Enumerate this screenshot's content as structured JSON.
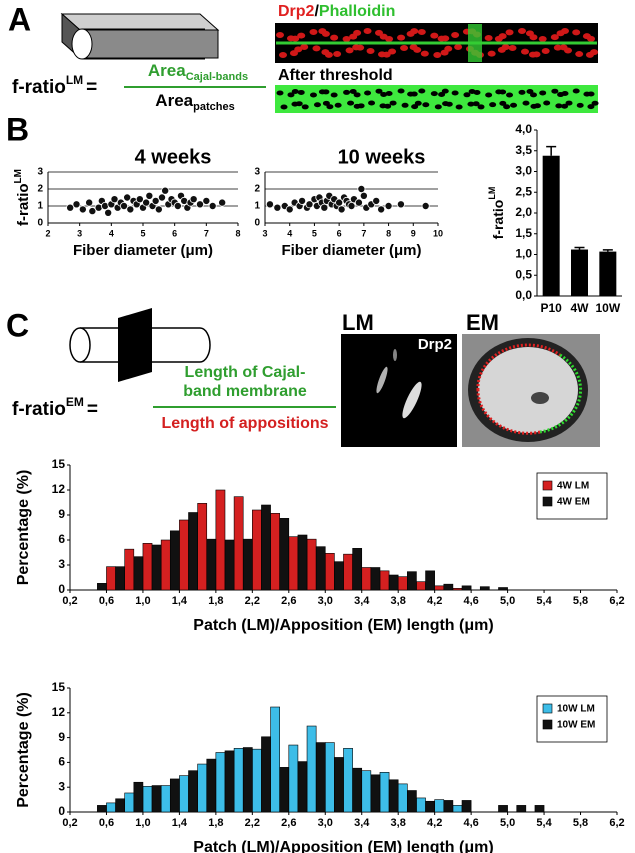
{
  "panel_a": {
    "label": "A",
    "formula": {
      "lhs": "f-ratio",
      "lhs_sup": "LM",
      "equals": "=",
      "num": "Area",
      "num_sub": "Cajal-bands",
      "den": "Area",
      "den_sub": "patches"
    },
    "image_title": {
      "part1": "Drp2",
      "sep": "/",
      "part2": "Phalloidin"
    },
    "image_caption": "After threshold"
  },
  "panel_b": {
    "label": "B"
  },
  "panel_c": {
    "label": "C",
    "formula": {
      "lhs": "f-ratio",
      "lhs_sup": "EM",
      "equals": "=",
      "num_lines": [
        "Length of Cajal-",
        "band membrane"
      ],
      "den": "Length of appositions"
    },
    "image_labels": {
      "lm": "LM",
      "em": "EM",
      "stain": "Drp2"
    }
  },
  "chart_data": [
    {
      "type": "scatter",
      "title": "4 weeks",
      "xlabel": "Fiber diameter (μm)",
      "ylabel": "f-ratio",
      "ylabel_sup": "LM",
      "color": "#111111",
      "grid": true,
      "x": [
        2.7,
        2.9,
        3.1,
        3.3,
        3.4,
        3.6,
        3.7,
        3.8,
        3.9,
        4.0,
        4.1,
        4.2,
        4.3,
        4.4,
        4.5,
        4.6,
        4.7,
        4.8,
        4.9,
        5.0,
        5.1,
        5.2,
        5.3,
        5.4,
        5.5,
        5.6,
        5.7,
        5.8,
        5.9,
        6.0,
        6.1,
        6.2,
        6.3,
        6.4,
        6.5,
        6.6,
        6.8,
        7.0,
        7.2,
        7.5
      ],
      "values": [
        0.9,
        1.1,
        0.8,
        1.2,
        0.7,
        0.9,
        1.3,
        1.0,
        0.6,
        1.1,
        1.4,
        0.9,
        1.2,
        1.0,
        1.5,
        0.8,
        1.3,
        1.1,
        1.4,
        0.9,
        1.2,
        1.6,
        1.0,
        1.3,
        0.8,
        1.5,
        1.9,
        1.1,
        1.4,
        1.2,
        1.0,
        1.6,
        1.3,
        0.9,
        1.2,
        1.4,
        1.1,
        1.3,
        1.0,
        1.2
      ],
      "xlim": [
        2,
        8
      ],
      "xticks": [
        2,
        3,
        4,
        5,
        6,
        7,
        8
      ],
      "ylim": [
        0,
        3
      ],
      "yticks": [
        0,
        1,
        2,
        3
      ]
    },
    {
      "type": "scatter",
      "title": "10 weeks",
      "xlabel": "Fiber diameter (μm)",
      "color": "#111111",
      "grid": true,
      "x": [
        3.2,
        3.5,
        3.8,
        4.0,
        4.2,
        4.4,
        4.5,
        4.7,
        4.8,
        5.0,
        5.1,
        5.2,
        5.3,
        5.4,
        5.5,
        5.6,
        5.7,
        5.8,
        5.9,
        6.0,
        6.1,
        6.2,
        6.3,
        6.4,
        6.5,
        6.6,
        6.8,
        6.9,
        7.0,
        7.1,
        7.3,
        7.5,
        7.7,
        8.0,
        8.5,
        9.5
      ],
      "values": [
        1.1,
        0.9,
        1.0,
        0.8,
        1.2,
        1.0,
        1.3,
        0.9,
        1.1,
        1.4,
        1.0,
        1.5,
        1.2,
        0.9,
        1.3,
        1.6,
        1.1,
        1.4,
        1.0,
        1.2,
        0.8,
        1.5,
        1.3,
        1.1,
        1.0,
        1.4,
        1.2,
        2.0,
        1.6,
        0.9,
        1.1,
        1.3,
        0.8,
        1.0,
        1.1,
        1.0
      ],
      "xlim": [
        3,
        10
      ],
      "xticks": [
        3,
        4,
        5,
        6,
        7,
        8,
        9,
        10
      ],
      "ylim": [
        0,
        3
      ],
      "yticks": [
        0,
        1,
        2,
        3
      ]
    },
    {
      "type": "bar",
      "ylabel": "f-ratio",
      "ylabel_sup": "LM",
      "color": "#000000",
      "categories": [
        "P10",
        "4W",
        "10W"
      ],
      "values": [
        3.38,
        1.12,
        1.07
      ],
      "errors": [
        0.22,
        0.05,
        0.04
      ],
      "ylim": [
        0,
        4
      ],
      "yticks": [
        {
          "value": 0,
          "label": "0,0"
        },
        {
          "value": 0.5,
          "label": "0,5"
        },
        {
          "value": 1,
          "label": "1,0"
        },
        {
          "value": 1.5,
          "label": "1,5"
        },
        {
          "value": 2,
          "label": "2,0"
        },
        {
          "value": 2.5,
          "label": "2,5"
        },
        {
          "value": 3,
          "label": "3,0"
        },
        {
          "value": 3.5,
          "label": "3,5"
        },
        {
          "value": 4,
          "label": "4,0"
        }
      ]
    },
    {
      "type": "histogram",
      "xlabel": "Patch (LM)/Apposition (EM) length (μm)",
      "ylabel": "Percentage (%)",
      "legend": "upper right",
      "bins": [
        0.4,
        0.6,
        0.8,
        1.0,
        1.2,
        1.4,
        1.6,
        1.8,
        2.0,
        2.2,
        2.4,
        2.6,
        2.8,
        3.0,
        3.2,
        3.4,
        3.6,
        3.8,
        4.0,
        4.2,
        4.4,
        4.6,
        4.8,
        5.0,
        5.2,
        5.4,
        5.6
      ],
      "series": [
        {
          "name": "4W LM",
          "color": "#d42020",
          "values": [
            0,
            2.8,
            4.9,
            5.6,
            6.0,
            8.4,
            10.4,
            12,
            11.2,
            9.6,
            9.2,
            6.4,
            6.1,
            4.4,
            4.3,
            2.7,
            2.3,
            1.6,
            1.0,
            0.5,
            0.2,
            0,
            0,
            0,
            0,
            0
          ]
        },
        {
          "name": "4W EM",
          "color": "#111111",
          "values": [
            0.8,
            2.8,
            4.0,
            5.4,
            7.1,
            9.3,
            6.1,
            6.0,
            6.1,
            10.2,
            8.6,
            6.6,
            5.2,
            3.4,
            5.0,
            2.7,
            1.8,
            2.2,
            2.3,
            0.7,
            0.5,
            0.4,
            0.3,
            0,
            0,
            0
          ]
        }
      ],
      "xlim": [
        0.2,
        6.2
      ],
      "xticks": [
        {
          "value": 0.2,
          "label": "0,2"
        },
        {
          "value": 0.6,
          "label": "0,6"
        },
        {
          "value": 1.0,
          "label": "1,0"
        },
        {
          "value": 1.4,
          "label": "1,4"
        },
        {
          "value": 1.8,
          "label": "1,8"
        },
        {
          "value": 2.2,
          "label": "2,2"
        },
        {
          "value": 2.6,
          "label": "2,6"
        },
        {
          "value": 3.0,
          "label": "3,0"
        },
        {
          "value": 3.4,
          "label": "3,4"
        },
        {
          "value": 3.8,
          "label": "3,8"
        },
        {
          "value": 4.2,
          "label": "4,2"
        },
        {
          "value": 4.6,
          "label": "4,6"
        },
        {
          "value": 5.0,
          "label": "5,0"
        },
        {
          "value": 5.4,
          "label": "5,4"
        },
        {
          "value": 5.8,
          "label": "5,8"
        },
        {
          "value": 6.2,
          "label": "6,2"
        }
      ],
      "ylim": [
        0,
        15
      ],
      "yticks": [
        0,
        3,
        6,
        9,
        12,
        15
      ]
    },
    {
      "type": "histogram",
      "xlabel": "Patch (LM)/Apposition (EM) length (μm)",
      "ylabel": "Percentage (%)",
      "legend": "upper right",
      "bins": [
        0.4,
        0.6,
        0.8,
        1.0,
        1.2,
        1.4,
        1.6,
        1.8,
        2.0,
        2.2,
        2.4,
        2.6,
        2.8,
        3.0,
        3.2,
        3.4,
        3.6,
        3.8,
        4.0,
        4.2,
        4.4,
        4.6,
        4.8,
        5.0,
        5.2,
        5.4,
        5.6
      ],
      "series": [
        {
          "name": "10W LM",
          "color": "#3dbde8",
          "values": [
            0,
            1.1,
            2.3,
            3.1,
            3.2,
            4.4,
            5.8,
            7.2,
            7.7,
            7.6,
            12.7,
            8.1,
            10.4,
            8.4,
            7.7,
            5.0,
            4.8,
            3.4,
            1.7,
            1.5,
            0.8,
            0,
            0,
            0,
            0,
            0
          ]
        },
        {
          "name": "10W EM",
          "color": "#111111",
          "values": [
            0.8,
            1.6,
            3.6,
            3.2,
            4.0,
            5.0,
            6.4,
            7.4,
            7.8,
            9.1,
            5.4,
            6.1,
            8.4,
            6.6,
            5.3,
            4.5,
            3.9,
            2.6,
            1.3,
            1.4,
            1.4,
            0,
            0.8,
            0.8,
            0.8,
            0
          ]
        }
      ],
      "xlim": [
        0.2,
        6.2
      ],
      "xticks": [
        {
          "value": 0.2,
          "label": "0,2"
        },
        {
          "value": 0.6,
          "label": "0,6"
        },
        {
          "value": 1.0,
          "label": "1,0"
        },
        {
          "value": 1.4,
          "label": "1,4"
        },
        {
          "value": 1.8,
          "label": "1,8"
        },
        {
          "value": 2.2,
          "label": "2,2"
        },
        {
          "value": 2.6,
          "label": "2,6"
        },
        {
          "value": 3.0,
          "label": "3,0"
        },
        {
          "value": 3.4,
          "label": "3,4"
        },
        {
          "value": 3.8,
          "label": "3,8"
        },
        {
          "value": 4.2,
          "label": "4,2"
        },
        {
          "value": 4.6,
          "label": "4,6"
        },
        {
          "value": 5.0,
          "label": "5,0"
        },
        {
          "value": 5.4,
          "label": "5,4"
        },
        {
          "value": 5.8,
          "label": "5,8"
        },
        {
          "value": 6.2,
          "label": "6,2"
        }
      ],
      "ylim": [
        0,
        15
      ],
      "yticks": [
        0,
        3,
        6,
        9,
        12,
        15
      ]
    }
  ]
}
